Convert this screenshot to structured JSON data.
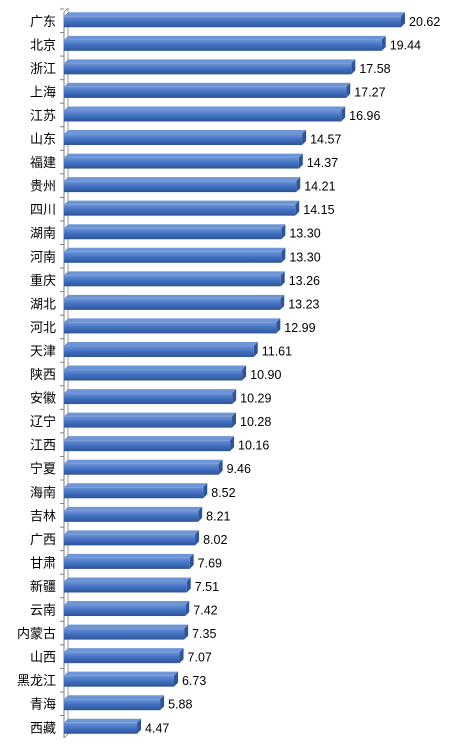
{
  "chart_data": {
    "type": "bar",
    "orientation": "horizontal",
    "title": "",
    "xlabel": "",
    "ylabel": "",
    "xlim": [
      0,
      20.62
    ],
    "grid": false,
    "legend": "none",
    "bar_color": "#4472C4",
    "bar_color_light": "#6E95D6",
    "bar_color_dark": "#2E5597",
    "label_color": "#000000",
    "axis_color": "#7F7F7F",
    "categories": [
      "广东",
      "北京",
      "浙江",
      "上海",
      "江苏",
      "山东",
      "福建",
      "贵州",
      "四川",
      "湖南",
      "河南",
      "重庆",
      "湖北",
      "河北",
      "天津",
      "陕西",
      "安徽",
      "辽宁",
      "江西",
      "宁夏",
      "海南",
      "吉林",
      "广西",
      "甘肃",
      "新疆",
      "云南",
      "内蒙古",
      "山西",
      "黑龙江",
      "青海",
      "西藏"
    ],
    "values": [
      20.62,
      19.44,
      17.58,
      17.27,
      16.96,
      14.57,
      14.37,
      14.21,
      14.15,
      13.3,
      13.3,
      13.26,
      13.23,
      12.99,
      11.61,
      10.9,
      10.29,
      10.28,
      10.16,
      9.46,
      8.52,
      8.21,
      8.02,
      7.69,
      7.51,
      7.42,
      7.35,
      7.07,
      6.73,
      5.88,
      4.47
    ],
    "value_labels": [
      "20.62",
      "19.44",
      "17.58",
      "17.27",
      "16.96",
      "14.57",
      "14.37",
      "14.21",
      "14.15",
      "13.30",
      "13.30",
      "13.26",
      "13.23",
      "12.99",
      "11.61",
      "10.90",
      "10.29",
      "10.28",
      "10.16",
      "9.46",
      "8.52",
      "8.21",
      "8.02",
      "7.69",
      "7.51",
      "7.42",
      "7.35",
      "7.07",
      "6.73",
      "5.88",
      "4.47"
    ]
  }
}
